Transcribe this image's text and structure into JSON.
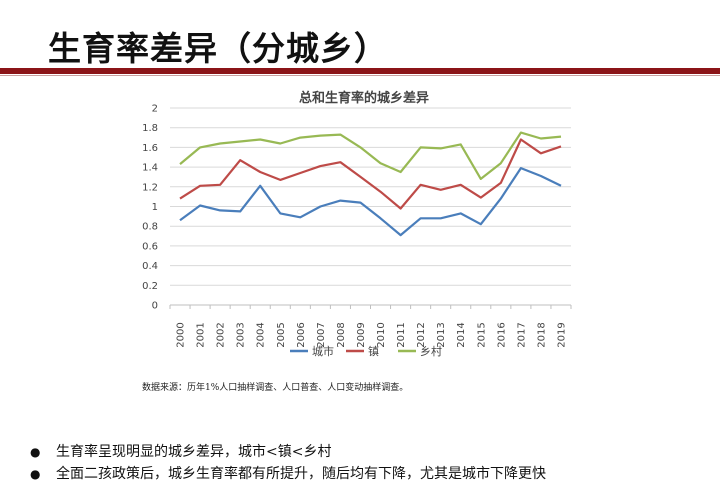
{
  "slide": {
    "title": "生育率差异（分城乡）"
  },
  "chart_data": {
    "type": "line",
    "title": "总和生育率的城乡差异",
    "xlabel": "",
    "ylabel": "",
    "ylim": [
      0,
      2
    ],
    "yticks": [
      "0",
      "0.2",
      "0.4",
      "0.6",
      "0.8",
      "1",
      "1.2",
      "1.4",
      "1.6",
      "1.8",
      "2"
    ],
    "categories": [
      "2000",
      "2001",
      "2002",
      "2003",
      "2004",
      "2005",
      "2006",
      "2007",
      "2008",
      "2009",
      "2010",
      "2011",
      "2012",
      "2013",
      "2014",
      "2015",
      "2016",
      "2017",
      "2018",
      "2019"
    ],
    "grid": true,
    "legend_position": "bottom",
    "series": [
      {
        "name": "城市",
        "color": "#4a7ebb",
        "values": [
          0.86,
          1.01,
          0.96,
          0.95,
          1.21,
          0.93,
          0.89,
          1.0,
          1.06,
          1.04,
          0.88,
          0.71,
          0.88,
          0.88,
          0.93,
          0.82,
          1.08,
          1.39,
          1.31,
          1.21
        ]
      },
      {
        "name": "镇",
        "color": "#be4b48",
        "values": [
          1.08,
          1.21,
          1.22,
          1.47,
          1.35,
          1.27,
          1.34,
          1.41,
          1.45,
          1.3,
          1.15,
          0.98,
          1.22,
          1.17,
          1.22,
          1.09,
          1.24,
          1.68,
          1.54,
          1.61
        ]
      },
      {
        "name": "乡村",
        "color": "#98b954",
        "values": [
          1.43,
          1.6,
          1.64,
          1.66,
          1.68,
          1.64,
          1.7,
          1.72,
          1.73,
          1.6,
          1.44,
          1.35,
          1.6,
          1.59,
          1.63,
          1.28,
          1.44,
          1.75,
          1.69,
          1.71
        ]
      }
    ]
  },
  "source_note": "数据来源：历年1%人口抽样调查、人口普查、人口变动抽样调查。",
  "bullets": [
    "生育率呈现明显的城乡差异，城市<镇<乡村",
    "全面二孩政策后，城乡生育率都有所提升，随后均有下降，尤其是城市下降更快"
  ]
}
